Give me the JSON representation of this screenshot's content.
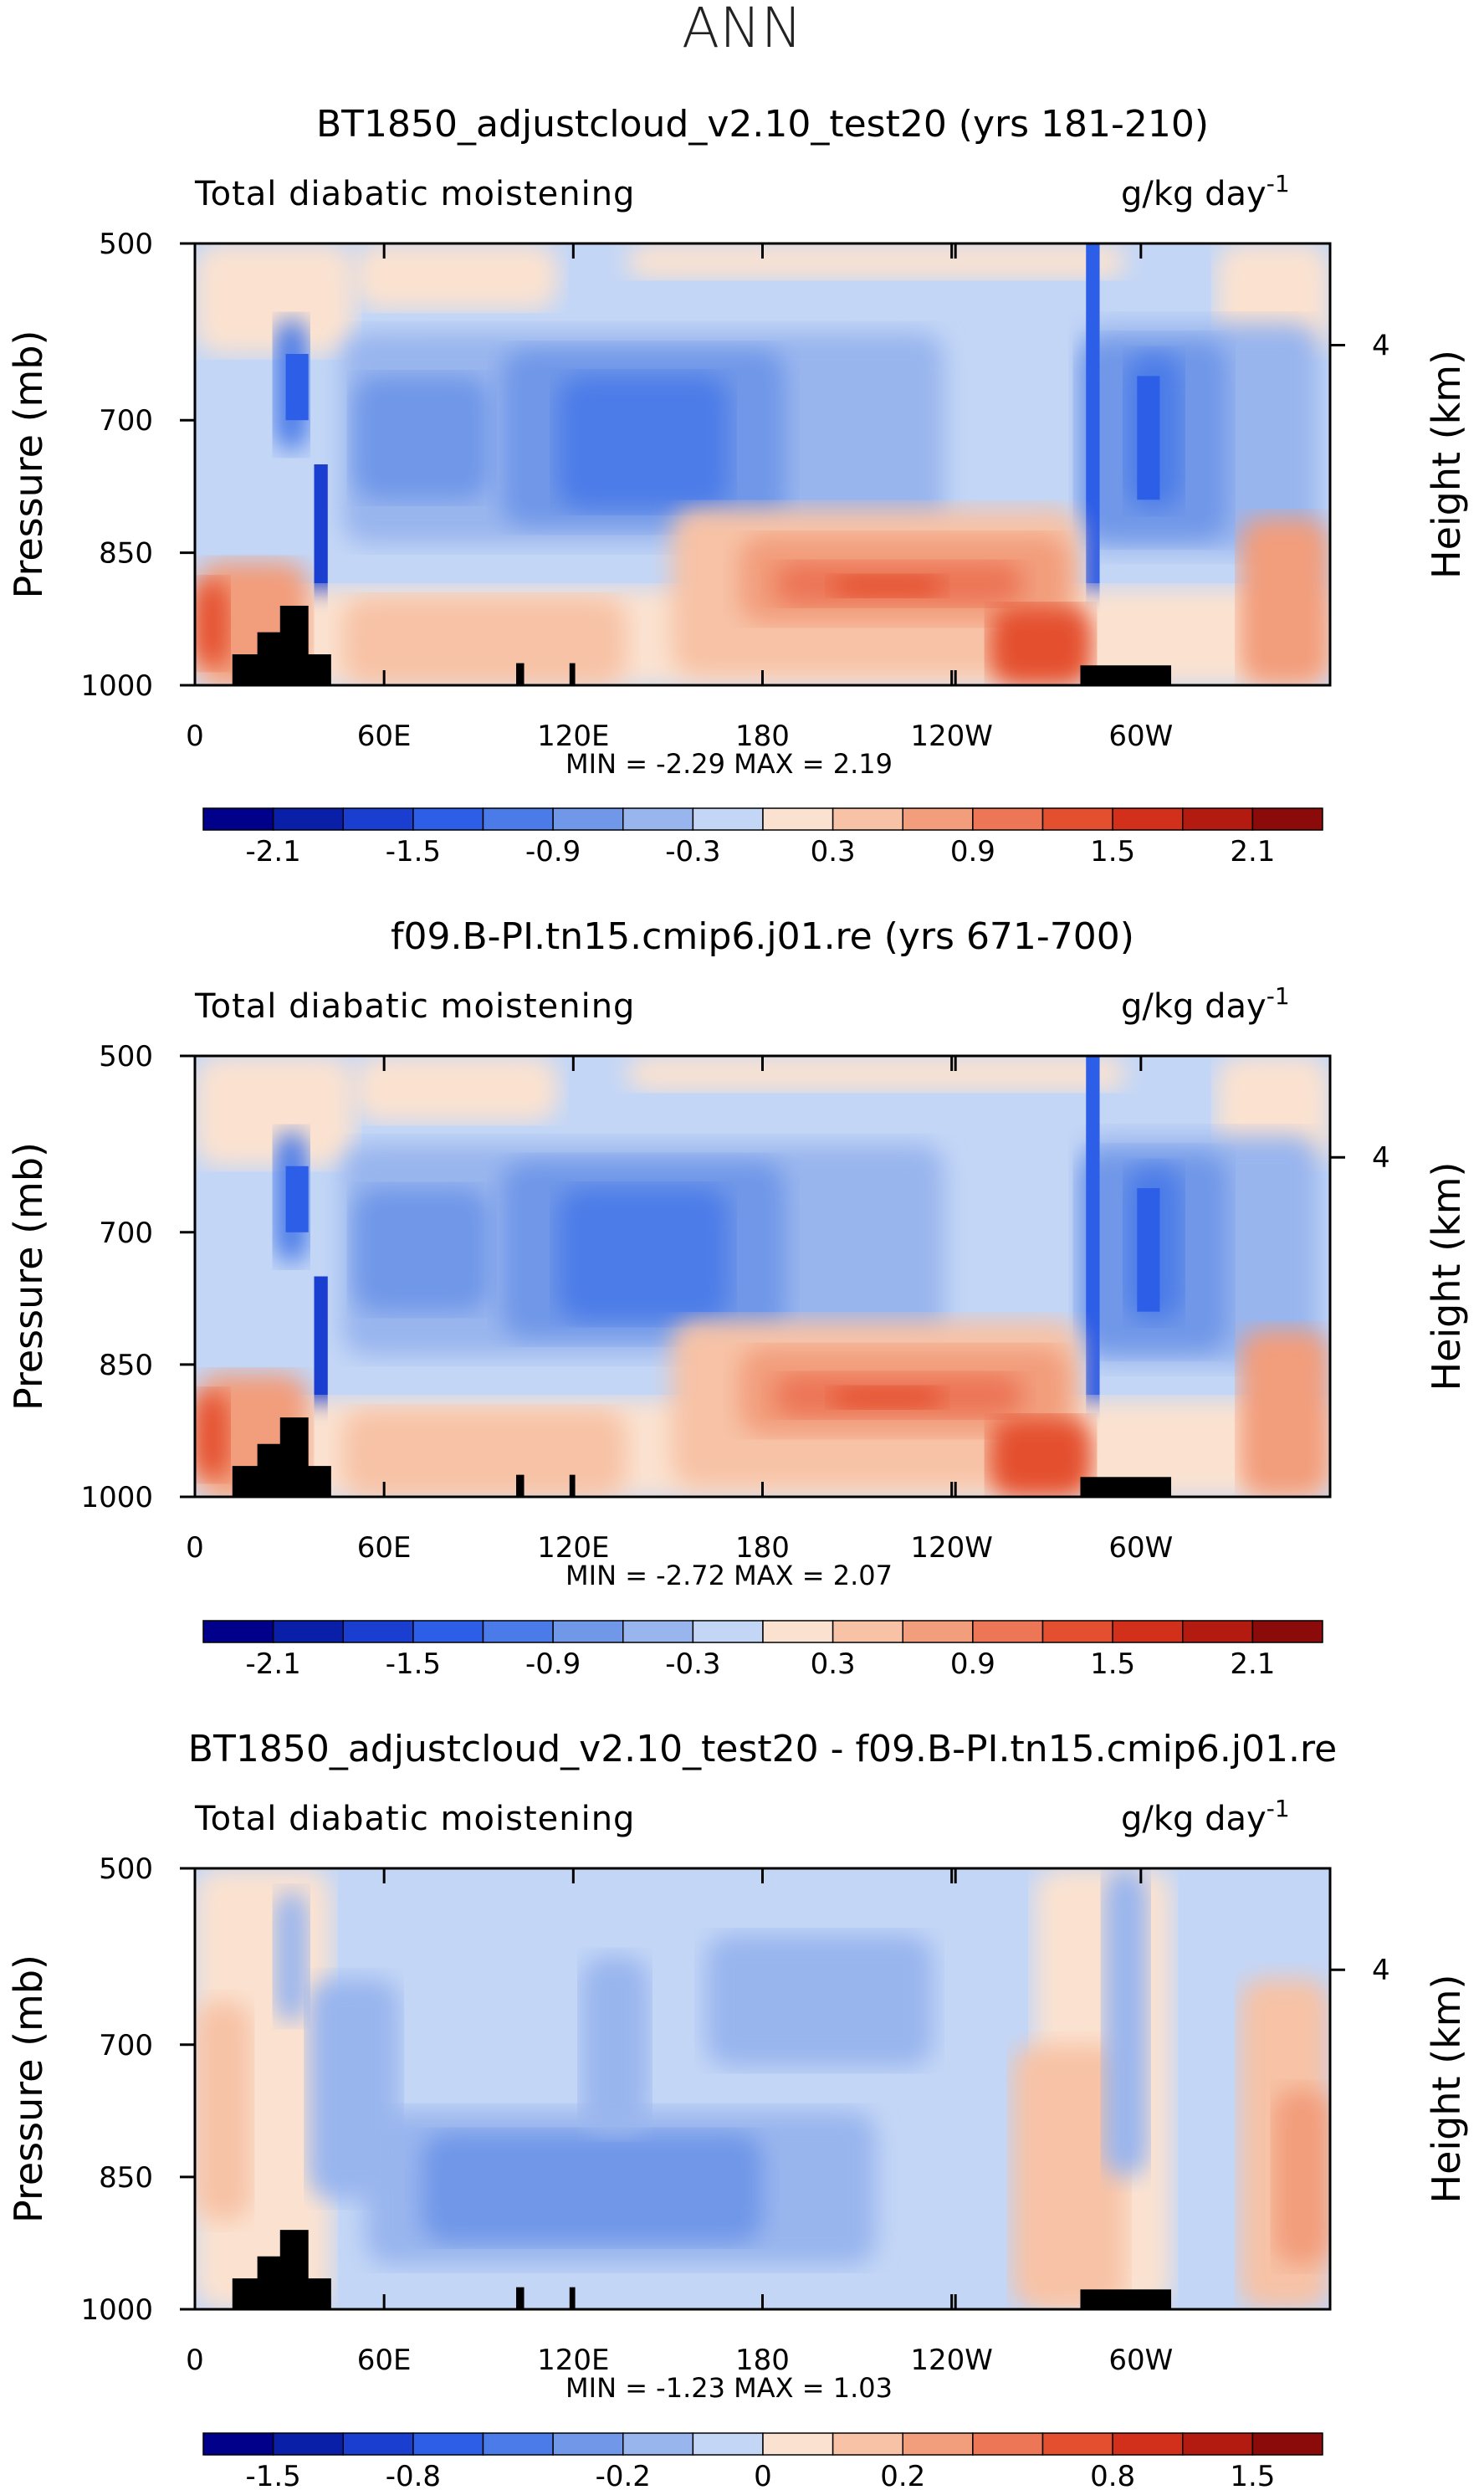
{
  "figure_title": "ANN",
  "chart_data": [
    {
      "type": "contour",
      "title": "BT1850_adjustcloud_v2.10_test20 (yrs 181-210)",
      "field_label": "Total diabatic moistening",
      "units_label": "g/kg day",
      "units_exponent": "-1",
      "ylabel": "Pressure (mb)",
      "ylabel_right": "Height (km)",
      "x_ticks": [
        "0",
        "60E",
        "120E",
        "180",
        "120W",
        "60W"
      ],
      "y_ticks": [
        "500",
        "700",
        "850",
        "1000"
      ],
      "y_right_ticks": [
        "4"
      ],
      "stats_text": "MIN =   -2.29   MAX =    2.19",
      "min": -2.29,
      "max": 2.19,
      "colorbar_ticks": [
        "-2.1",
        "-1.5",
        "-0.9",
        "-0.3",
        "0.3",
        "0.9",
        "1.5",
        "2.1"
      ],
      "colorbar_levels": [
        -2.4,
        -2.1,
        -1.8,
        -1.5,
        -1.2,
        -0.9,
        -0.6,
        -0.3,
        0,
        0.3,
        0.6,
        0.9,
        1.2,
        1.5,
        1.8,
        2.1,
        2.4
      ]
    },
    {
      "type": "contour",
      "title": "f09.B-PI.tn15.cmip6.j01.re (yrs 671-700)",
      "field_label": "Total diabatic moistening",
      "units_label": "g/kg day",
      "units_exponent": "-1",
      "ylabel": "Pressure (mb)",
      "ylabel_right": "Height (km)",
      "x_ticks": [
        "0",
        "60E",
        "120E",
        "180",
        "120W",
        "60W"
      ],
      "y_ticks": [
        "500",
        "700",
        "850",
        "1000"
      ],
      "y_right_ticks": [
        "4"
      ],
      "stats_text": "MIN =   -2.72   MAX =    2.07",
      "min": -2.72,
      "max": 2.07,
      "colorbar_ticks": [
        "-2.1",
        "-1.5",
        "-0.9",
        "-0.3",
        "0.3",
        "0.9",
        "1.5",
        "2.1"
      ],
      "colorbar_levels": [
        -2.4,
        -2.1,
        -1.8,
        -1.5,
        -1.2,
        -0.9,
        -0.6,
        -0.3,
        0,
        0.3,
        0.6,
        0.9,
        1.2,
        1.5,
        1.8,
        2.1,
        2.4
      ]
    },
    {
      "type": "contour",
      "title": "BT1850_adjustcloud_v2.10_test20 - f09.B-PI.tn15.cmip6.j01.re",
      "field_label": "Total diabatic moistening",
      "units_label": "g/kg day",
      "units_exponent": "-1",
      "ylabel": "Pressure (mb)",
      "ylabel_right": "Height (km)",
      "x_ticks": [
        "0",
        "60E",
        "120E",
        "180",
        "120W",
        "60W"
      ],
      "y_ticks": [
        "500",
        "700",
        "850",
        "1000"
      ],
      "y_right_ticks": [
        "4"
      ],
      "stats_text": "MIN =   -1.23   MAX =    1.03",
      "min": -1.23,
      "max": 1.03,
      "colorbar_ticks": [
        "-1.5",
        "-0.8",
        "-0.2",
        "0",
        "0.2",
        "0.8",
        "1.5"
      ],
      "colorbar_levels": [
        -2,
        -1.5,
        -1.2,
        -0.8,
        -0.5,
        -0.3,
        -0.2,
        -0.1,
        0,
        0.1,
        0.2,
        0.3,
        0.5,
        0.8,
        1.2,
        1.5,
        2
      ]
    }
  ],
  "colors": {
    "palette": [
      "#00008b",
      "#0a1fa8",
      "#1a3fd0",
      "#2d5ee8",
      "#4b7be8",
      "#7097e8",
      "#99b5ee",
      "#c3d6f6",
      "#fbe2d0",
      "#f7c2a6",
      "#f29d7c",
      "#ec7656",
      "#e4502f",
      "#d2301a",
      "#b31a10",
      "#8b0a0a"
    ],
    "land": "#000000",
    "background": "#ffffff"
  }
}
